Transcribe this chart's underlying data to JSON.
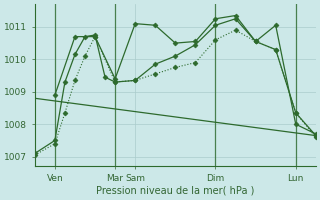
{
  "background_color": "#cce8e8",
  "grid_color": "#aacccc",
  "line_color": "#2d6a2d",
  "title": "Pression niveau de la mer( hPa )",
  "ylim": [
    1006.7,
    1011.7
  ],
  "yticks": [
    1007,
    1008,
    1009,
    1010,
    1011
  ],
  "xlim": [
    0,
    28
  ],
  "xtick_positions": [
    2,
    8,
    10,
    18,
    26
  ],
  "xtick_labels": [
    "Ven",
    "Mar",
    "Sam",
    "Dim",
    "Lun"
  ],
  "vlines_x": [
    2,
    8,
    18,
    26
  ],
  "series": [
    {
      "x": [
        0,
        2,
        3,
        4,
        5,
        6,
        8,
        10,
        12,
        14,
        16,
        18,
        20,
        22,
        24,
        26,
        28
      ],
      "y": [
        1007.05,
        1007.4,
        1008.35,
        1009.35,
        1010.1,
        1010.7,
        1009.3,
        1009.35,
        1009.55,
        1009.75,
        1009.9,
        1010.6,
        1010.9,
        1010.55,
        1010.3,
        1008.35,
        1007.6
      ],
      "style": "dotted_marker"
    },
    {
      "x": [
        0,
        2,
        3,
        4,
        5,
        6,
        7,
        8,
        10,
        12,
        14,
        16,
        18,
        20,
        22,
        24,
        26,
        28
      ],
      "y": [
        1007.1,
        1007.5,
        1009.3,
        1010.15,
        1010.7,
        1010.75,
        1009.45,
        1009.3,
        1009.35,
        1009.85,
        1010.1,
        1010.45,
        1011.05,
        1011.25,
        1010.55,
        1010.3,
        1008.35,
        1007.65
      ],
      "style": "solid_marker"
    },
    {
      "x": [
        2,
        4,
        6,
        8,
        10,
        12,
        14,
        16,
        18,
        20,
        22,
        24,
        26,
        28
      ],
      "y": [
        1008.9,
        1010.7,
        1010.7,
        1009.4,
        1011.1,
        1011.05,
        1010.5,
        1010.55,
        1011.25,
        1011.35,
        1010.55,
        1011.05,
        1008.0,
        1007.7
      ],
      "style": "solid_marker"
    },
    {
      "x": [
        0,
        28
      ],
      "y": [
        1008.8,
        1007.65
      ],
      "style": "solid_plain"
    }
  ]
}
